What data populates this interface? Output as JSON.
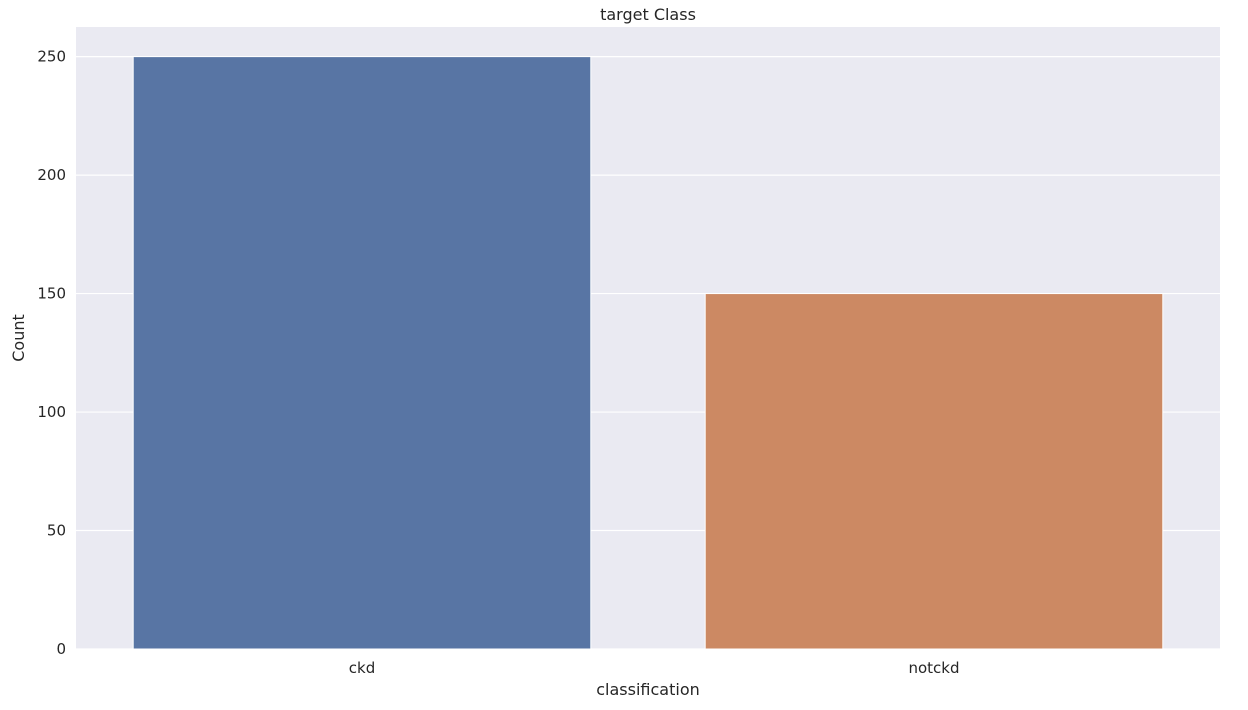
{
  "chart_data": {
    "type": "bar",
    "title": "target Class",
    "xlabel": "classification",
    "ylabel": "Count",
    "categories": [
      "ckd",
      "notckd"
    ],
    "values": [
      250,
      150
    ],
    "ylim": [
      0,
      262.5
    ],
    "yticks": [
      0,
      50,
      100,
      150,
      200,
      250
    ],
    "grid": true,
    "colors": [
      "#5875a4",
      "#cc8963"
    ],
    "background": "#eaeaf2",
    "gridColor": "#ffffff"
  }
}
